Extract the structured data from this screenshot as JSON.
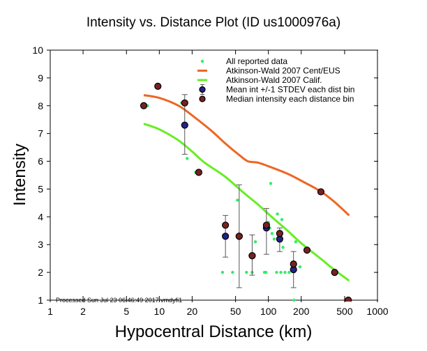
{
  "chart_data": {
    "type": "scatter",
    "title": "Intensity vs. Distance Plot (ID us1000976a)",
    "xlabel": "Hypocentral Distance (km)",
    "ylabel": "Intensity",
    "xscale": "log",
    "xlim": [
      1,
      1000
    ],
    "ylim": [
      1,
      10
    ],
    "x_ticks": [
      1,
      2,
      5,
      10,
      20,
      50,
      100,
      200,
      500,
      1000
    ],
    "x_tick_labels": [
      "1",
      "2",
      "5",
      "10",
      "20",
      "50",
      "100",
      "200",
      "500",
      "1000"
    ],
    "y_ticks": [
      1,
      2,
      3,
      4,
      5,
      6,
      7,
      8,
      9,
      10
    ],
    "y_tick_labels": [
      "1",
      "2",
      "3",
      "4",
      "5",
      "6",
      "7",
      "8",
      "9",
      "10"
    ],
    "grid": false,
    "legend_position": "top-right",
    "annotation": "Processed Sun Jul 23 06:46:49 2017 vmdyfi1",
    "colors": {
      "all_data": "#33ee66",
      "cent_eus": "#ee6622",
      "calif": "#66ee22",
      "mean": "#222288",
      "median": "#772222",
      "errorbar": "#555555"
    },
    "legend": [
      {
        "key": "all_data",
        "label": "All reported data",
        "symbol": "dot"
      },
      {
        "key": "cent_eus",
        "label": "Atkinson-Wald 2007 Cent/EUS",
        "symbol": "line"
      },
      {
        "key": "calif",
        "label": "Atkinson-Wald 2007 Calif.",
        "symbol": "line"
      },
      {
        "key": "mean",
        "label": "Mean int +/-1 STDEV each dist bin",
        "symbol": "circle-errorbar"
      },
      {
        "key": "median",
        "label": "Median intensity each distance bin",
        "symbol": "circle"
      }
    ],
    "series": [
      {
        "name": "All reported data",
        "key": "all_data",
        "points": [
          [
            7.8,
            8.0
          ],
          [
            16,
            8.1
          ],
          [
            18,
            6.1
          ],
          [
            21.5,
            5.6
          ],
          [
            38,
            2.0
          ],
          [
            47,
            2.0
          ],
          [
            52,
            4.6
          ],
          [
            63,
            2.0
          ],
          [
            71,
            2.0
          ],
          [
            76,
            3.1
          ],
          [
            92,
            2.0
          ],
          [
            95,
            2.0
          ],
          [
            100,
            3.8
          ],
          [
            103,
            3.6
          ],
          [
            105,
            5.2
          ],
          [
            108,
            3.4
          ],
          [
            113,
            3.2
          ],
          [
            119,
            2.0
          ],
          [
            121,
            4.1
          ],
          [
            126,
            3.4
          ],
          [
            130,
            2.0
          ],
          [
            133,
            3.9
          ],
          [
            136,
            2.9
          ],
          [
            142,
            2.0
          ],
          [
            155,
            2.0
          ],
          [
            172,
            1.0
          ],
          [
            175,
            2.3
          ],
          [
            178,
            3.1
          ],
          [
            195,
            2.2
          ],
          [
            430,
            2.0
          ]
        ]
      },
      {
        "name": "Atkinson-Wald 2007 Cent/EUS",
        "key": "cent_eus",
        "line": [
          [
            7.2,
            8.38
          ],
          [
            10,
            8.28
          ],
          [
            15,
            8.0
          ],
          [
            20,
            7.65
          ],
          [
            30,
            7.1
          ],
          [
            40,
            6.65
          ],
          [
            55,
            6.2
          ],
          [
            65,
            6.0
          ],
          [
            80,
            5.95
          ],
          [
            100,
            5.82
          ],
          [
            150,
            5.55
          ],
          [
            200,
            5.3
          ],
          [
            300,
            4.92
          ],
          [
            400,
            4.55
          ],
          [
            550,
            4.05
          ]
        ]
      },
      {
        "name": "Atkinson-Wald 2007 Calif.",
        "key": "calif",
        "line": [
          [
            7.2,
            7.35
          ],
          [
            10,
            7.15
          ],
          [
            15,
            6.75
          ],
          [
            20,
            6.35
          ],
          [
            26,
            5.95
          ],
          [
            40,
            5.45
          ],
          [
            60,
            4.85
          ],
          [
            80,
            4.45
          ],
          [
            100,
            4.1
          ],
          [
            150,
            3.5
          ],
          [
            200,
            3.05
          ],
          [
            300,
            2.5
          ],
          [
            400,
            2.1
          ],
          [
            550,
            1.7
          ]
        ]
      },
      {
        "name": "Mean int +/-1 STDEV each dist bin",
        "key": "mean",
        "points": [
          {
            "x": 17.1,
            "y": 7.3,
            "lo": 6.25,
            "hi": 8.4
          },
          {
            "x": 40.4,
            "y": 3.3,
            "lo": 2.55,
            "hi": 4.05
          },
          {
            "x": 54,
            "y": 3.3,
            "lo": 1.45,
            "hi": 5.15
          },
          {
            "x": 71,
            "y": 2.6,
            "lo": 1.9,
            "hi": 3.35
          },
          {
            "x": 96,
            "y": 3.6,
            "lo": 2.65,
            "hi": 4.3
          },
          {
            "x": 127,
            "y": 3.2,
            "lo": 2.75,
            "hi": 3.6
          },
          {
            "x": 170,
            "y": 2.1,
            "lo": 1.45,
            "hi": 2.75
          }
        ]
      },
      {
        "name": "Median intensity each distance bin",
        "key": "median",
        "points": [
          [
            7.2,
            8.0
          ],
          [
            9.7,
            8.7
          ],
          [
            17.1,
            8.1
          ],
          [
            23,
            5.6
          ],
          [
            40.4,
            3.7
          ],
          [
            54,
            3.3
          ],
          [
            71,
            2.6
          ],
          [
            96,
            3.7
          ],
          [
            127,
            3.4
          ],
          [
            170,
            2.3
          ],
          [
            226,
            2.8
          ],
          [
            303,
            4.9
          ],
          [
            405,
            2.0
          ],
          [
            540,
            1.0
          ]
        ]
      }
    ]
  }
}
